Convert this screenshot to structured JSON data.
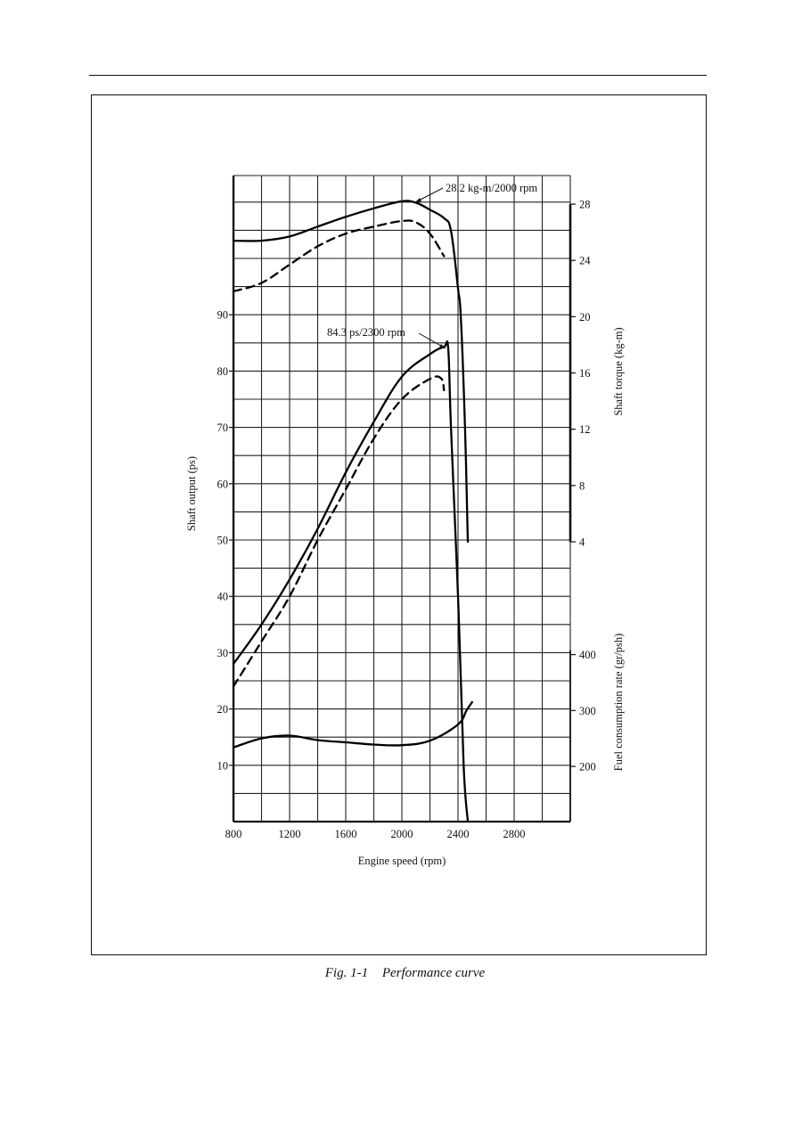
{
  "figure": {
    "number": "Fig. 1-1",
    "title": "Performance curve"
  },
  "chart_data": {
    "type": "line",
    "title": "Performance curve",
    "xlabel": "Engine speed (rpm)",
    "x_ticks": [
      800,
      1200,
      1600,
      2000,
      2400,
      2800
    ],
    "xlim": [
      800,
      3200
    ],
    "grid": true,
    "axes": {
      "left": {
        "label": "Shaft output (ps)",
        "ticks": [
          10,
          20,
          30,
          40,
          50,
          60,
          70,
          80,
          90
        ],
        "range": [
          0,
          115
        ]
      },
      "right_upper": {
        "label": "Shaft torque (kg-m)",
        "ticks": [
          4,
          8,
          12,
          16,
          20,
          24,
          28
        ]
      },
      "right_lower": {
        "label": "Fuel consumption rate (gr/psh)",
        "ticks": [
          200,
          300,
          400
        ]
      }
    },
    "annotations": [
      {
        "text": "28.2 kg-m/2000 rpm",
        "x": 2000,
        "y": 28.2,
        "axis": "torque"
      },
      {
        "text": "84.3 ps/2300 rpm",
        "x": 2300,
        "y": 84.3,
        "axis": "output"
      }
    ],
    "series": [
      {
        "name": "Shaft torque (solid)",
        "axis": "torque",
        "style": "solid",
        "x": [
          800,
          1000,
          1200,
          1400,
          1600,
          1800,
          2000,
          2100,
          2200,
          2300,
          2350,
          2400,
          2420,
          2450,
          2470
        ],
        "y": [
          25.4,
          25.4,
          25.7,
          26.4,
          27.1,
          27.7,
          28.2,
          28.1,
          27.6,
          27.0,
          26.1,
          22.0,
          20.0,
          12.0,
          4.0
        ]
      },
      {
        "name": "Shaft torque (dashed)",
        "axis": "torque",
        "style": "dashed",
        "x": [
          800,
          1000,
          1200,
          1400,
          1600,
          1800,
          2000,
          2100,
          2200,
          2300
        ],
        "y": [
          21.8,
          22.4,
          23.7,
          25.0,
          25.9,
          26.4,
          26.8,
          26.7,
          25.9,
          24.3
        ]
      },
      {
        "name": "Shaft output (solid)",
        "axis": "output",
        "style": "solid",
        "x": [
          800,
          1000,
          1200,
          1400,
          1600,
          1800,
          2000,
          2200,
          2300,
          2330,
          2350,
          2400,
          2440,
          2470
        ],
        "y": [
          28,
          35,
          43,
          52,
          62,
          71,
          79,
          83,
          84.3,
          84,
          70,
          40,
          10,
          0
        ]
      },
      {
        "name": "Shaft output (dashed)",
        "axis": "output",
        "style": "dashed",
        "x": [
          800,
          1000,
          1200,
          1400,
          1600,
          1800,
          2000,
          2200,
          2280,
          2300
        ],
        "y": [
          24,
          32,
          40,
          50,
          59,
          68,
          75,
          78.6,
          78.7,
          76.6
        ]
      },
      {
        "name": "Fuel consumption rate",
        "axis": "fuel",
        "style": "solid",
        "x": [
          800,
          1000,
          1200,
          1400,
          1600,
          1800,
          2000,
          2200,
          2400,
          2460,
          2500
        ],
        "y": [
          234,
          250,
          255,
          247,
          243,
          239,
          238,
          246,
          275,
          300,
          315
        ]
      }
    ]
  }
}
